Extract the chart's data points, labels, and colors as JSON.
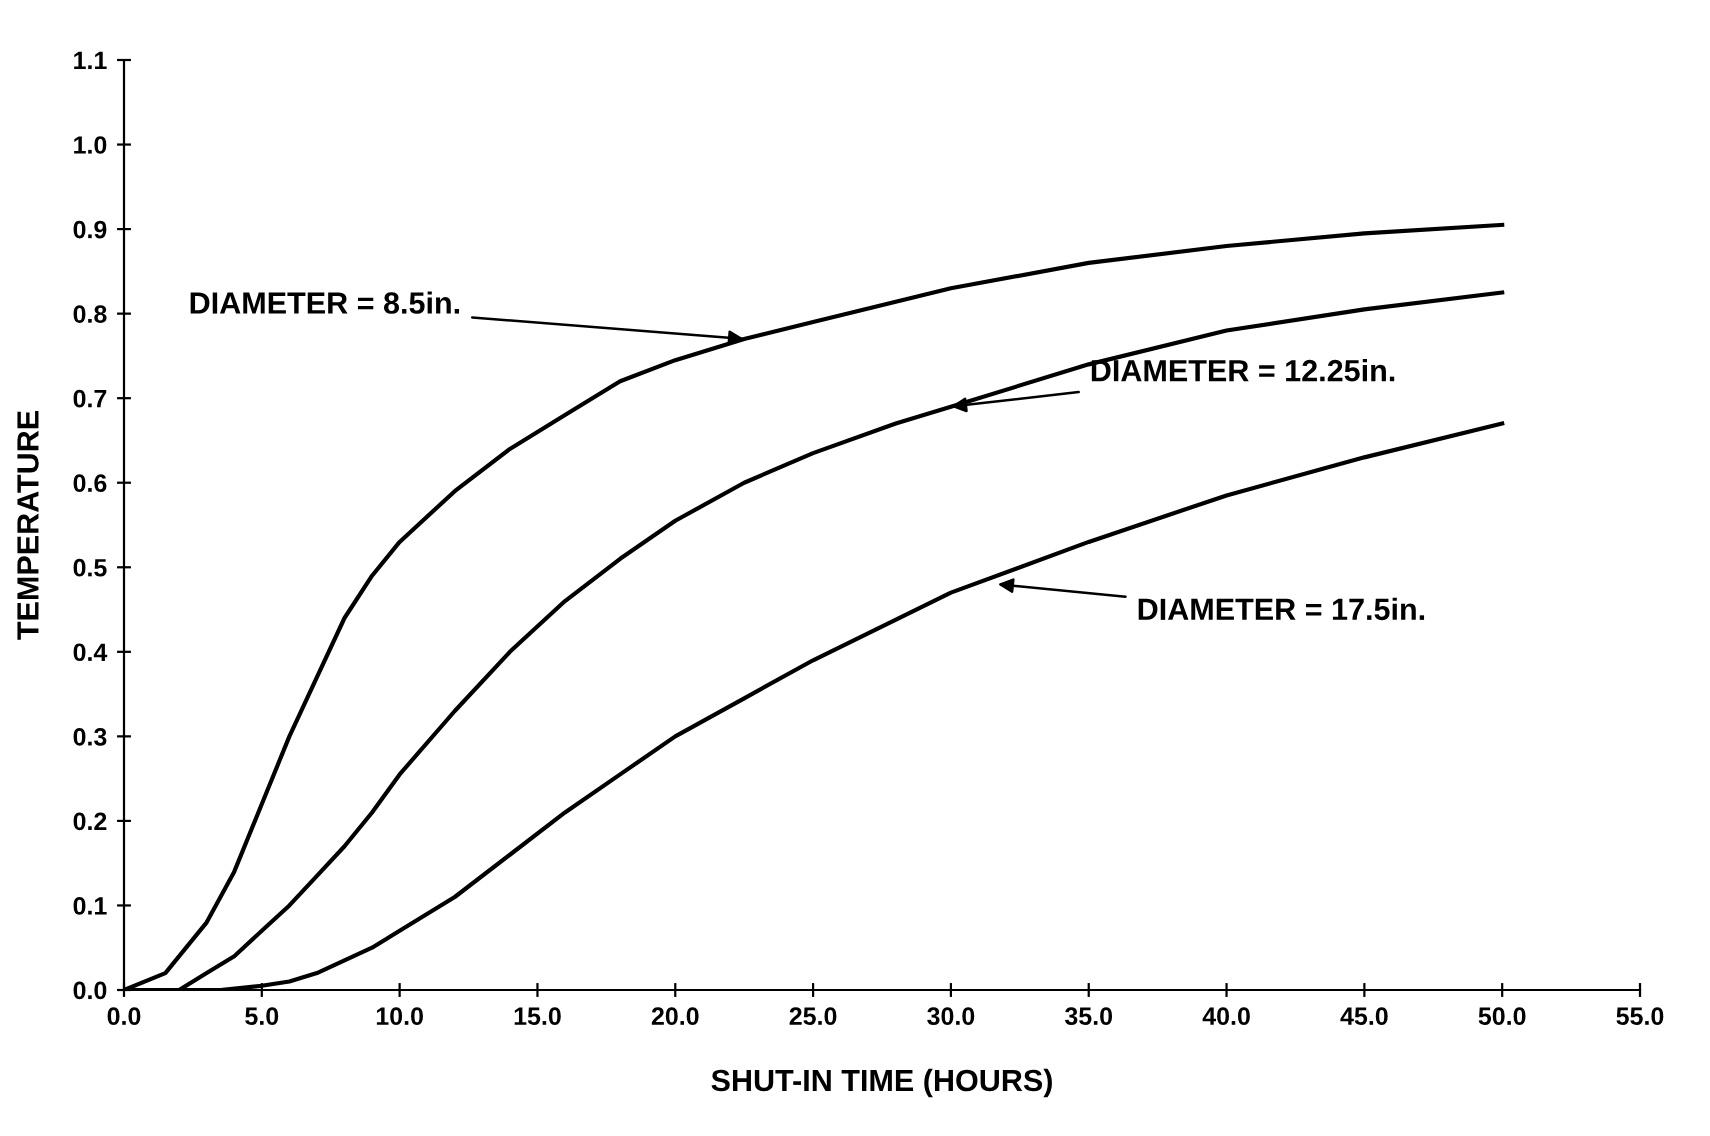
{
  "chart_data": {
    "type": "line",
    "xlabel": "SHUT-IN TIME (HOURS)",
    "ylabel": "TEMPERATURE",
    "xlim": [
      0,
      55
    ],
    "xticks": [
      {
        "value": 0,
        "label": "0.0"
      },
      {
        "value": 5,
        "label": "5.0"
      },
      {
        "value": 10,
        "label": "10.0"
      },
      {
        "value": 15,
        "label": "15.0"
      },
      {
        "value": 20,
        "label": "20.0"
      },
      {
        "value": 25,
        "label": "25.0"
      },
      {
        "value": 30,
        "label": "30.0"
      },
      {
        "value": 35,
        "label": "35.0"
      },
      {
        "value": 40,
        "label": "40.0"
      },
      {
        "value": 45,
        "label": "45.0"
      },
      {
        "value": 50,
        "label": "50.0"
      },
      {
        "value": 55,
        "label": "55.0"
      }
    ],
    "ylim": [
      0,
      1.1
    ],
    "yticks": [
      {
        "value": 0,
        "label": "0.0"
      },
      0.1,
      0.2,
      0.3,
      0.4,
      0.5,
      0.6,
      0.7,
      0.8,
      0.9,
      {
        "value": 1,
        "label": "1.0"
      },
      1.1
    ],
    "grid": false,
    "legend": false,
    "marker": "none",
    "line_style": "solid",
    "series": [
      {
        "color": "#000000",
        "x": [
          0,
          1.5,
          3,
          4,
          5,
          6,
          7,
          8,
          9,
          10,
          12,
          14,
          16,
          18,
          20,
          22.5,
          25,
          30,
          35,
          40,
          45,
          50
        ],
        "values": [
          0,
          0.02,
          0.08,
          0.14,
          0.22,
          0.3,
          0.37,
          0.44,
          0.49,
          0.53,
          0.59,
          0.64,
          0.68,
          0.72,
          0.745,
          0.77,
          0.79,
          0.83,
          0.86,
          0.88,
          0.895,
          0.905
        ]
      },
      {
        "color": "#000000",
        "x": [
          0,
          2,
          3,
          4,
          5,
          6,
          7,
          8,
          9,
          10,
          12,
          14,
          16,
          18,
          20,
          22.5,
          25,
          28,
          30,
          35,
          40,
          45,
          50
        ],
        "values": [
          0,
          0,
          0.02,
          0.04,
          0.07,
          0.1,
          0.135,
          0.17,
          0.21,
          0.255,
          0.33,
          0.4,
          0.46,
          0.51,
          0.555,
          0.6,
          0.635,
          0.67,
          0.69,
          0.74,
          0.78,
          0.805,
          0.825
        ]
      },
      {
        "color": "#000000",
        "x": [
          0,
          3.5,
          5,
          6,
          7,
          8,
          9,
          10,
          12,
          14,
          16,
          18,
          20,
          22.5,
          25,
          30,
          35,
          40,
          45,
          50
        ],
        "values": [
          0,
          0,
          0.005,
          0.01,
          0.02,
          0.035,
          0.05,
          0.07,
          0.11,
          0.16,
          0.21,
          0.255,
          0.3,
          0.345,
          0.39,
          0.47,
          0.53,
          0.585,
          0.63,
          0.67
        ]
      }
    ],
    "annotations": [
      {
        "text": "DIAMETER = 8.5in.",
        "x": 22.5,
        "y": 0.77
      },
      {
        "text": "DIAMETER = 12.25in.",
        "x": 30,
        "y": 0.69
      },
      {
        "text": "DIAMETER = 17.5in.",
        "x": 31.7,
        "y": 0.48
      }
    ]
  }
}
